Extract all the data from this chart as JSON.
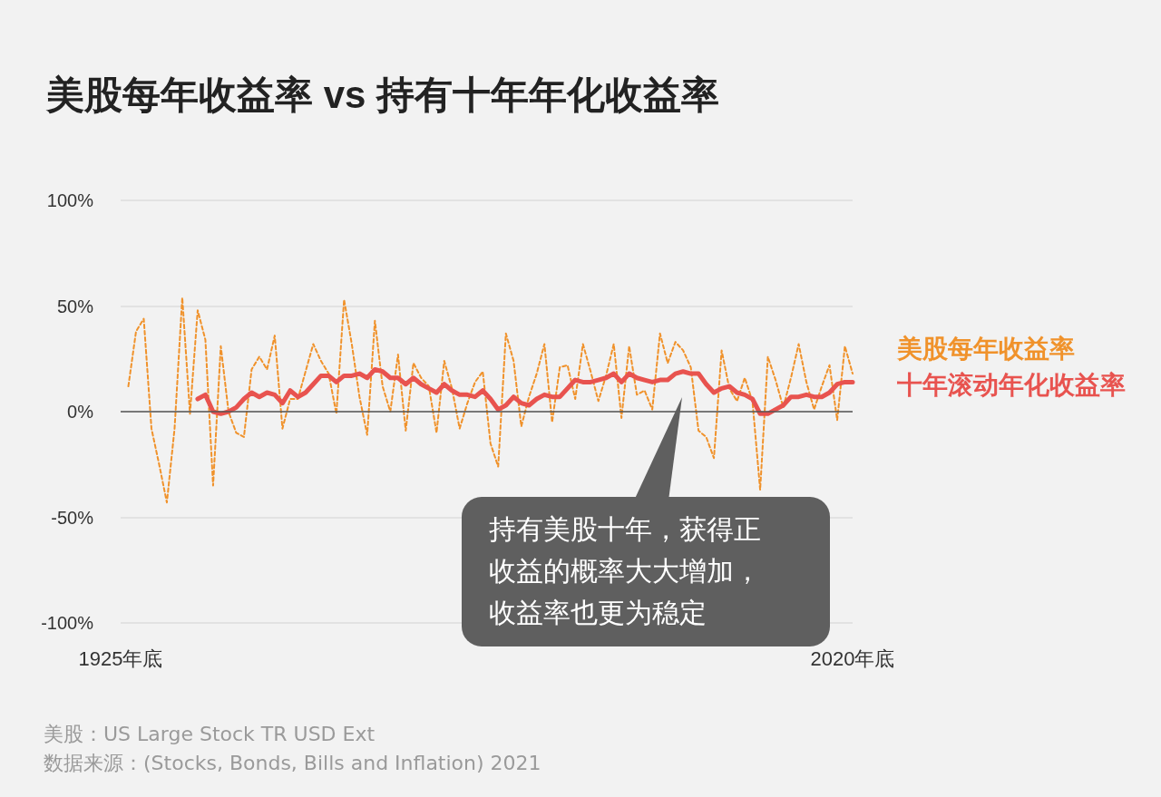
{
  "chart_data": {
    "type": "line",
    "title": "美股每年收益率 vs 持有十年年化收益率",
    "xlim": [
      1925,
      2020
    ],
    "xticks": [
      {
        "value": 1925,
        "label": "1925年底"
      },
      {
        "value": 2020,
        "label": "2020年底"
      }
    ],
    "ylim": [
      -100,
      100
    ],
    "yticks": [
      {
        "value": -100,
        "label": "-100%"
      },
      {
        "value": -50,
        "label": "-50%"
      },
      {
        "value": 0,
        "label": "0%"
      },
      {
        "value": 50,
        "label": "50%"
      },
      {
        "value": 100,
        "label": "100%"
      }
    ],
    "grid": "y",
    "legend": "right",
    "marker": "none",
    "ref_lines": [
      {
        "axis": "y",
        "value": 0,
        "color": "#555555"
      }
    ],
    "series": [
      {
        "name": "美股每年收益率",
        "color": "#f0922b",
        "line_style": "dashed",
        "x": [
          1926,
          1927,
          1928,
          1929,
          1930,
          1931,
          1932,
          1933,
          1934,
          1935,
          1936,
          1937,
          1938,
          1939,
          1940,
          1941,
          1942,
          1943,
          1944,
          1945,
          1946,
          1947,
          1948,
          1949,
          1950,
          1951,
          1952,
          1953,
          1954,
          1955,
          1956,
          1957,
          1958,
          1959,
          1960,
          1961,
          1962,
          1963,
          1964,
          1965,
          1966,
          1967,
          1968,
          1969,
          1970,
          1971,
          1972,
          1973,
          1974,
          1975,
          1976,
          1977,
          1978,
          1979,
          1980,
          1981,
          1982,
          1983,
          1984,
          1985,
          1986,
          1987,
          1988,
          1989,
          1990,
          1991,
          1992,
          1993,
          1994,
          1995,
          1996,
          1997,
          1998,
          1999,
          2000,
          2001,
          2002,
          2003,
          2004,
          2005,
          2006,
          2007,
          2008,
          2009,
          2010,
          2011,
          2012,
          2013,
          2014,
          2015,
          2016,
          2017,
          2018,
          2019,
          2020
        ],
        "values": [
          12,
          38,
          44,
          -8,
          -25,
          -43,
          -8,
          54,
          -1,
          48,
          34,
          -35,
          31,
          0,
          -10,
          -12,
          20,
          26,
          20,
          36,
          -8,
          6,
          6,
          19,
          32,
          24,
          18,
          -1,
          53,
          32,
          7,
          -11,
          43,
          12,
          0,
          27,
          -9,
          23,
          16,
          12,
          -10,
          24,
          11,
          -8,
          4,
          14,
          19,
          -15,
          -26,
          37,
          24,
          -7,
          7,
          18,
          32,
          -5,
          21,
          22,
          6,
          32,
          19,
          5,
          17,
          32,
          -3,
          31,
          8,
          10,
          1,
          37,
          23,
          33,
          29,
          21,
          -9,
          -12,
          -22,
          29,
          11,
          5,
          16,
          5,
          -37,
          26,
          15,
          2,
          16,
          32,
          14,
          1,
          12,
          22,
          -4,
          31,
          18
        ]
      },
      {
        "name": "十年滚动年化收益率",
        "color": "#e8534f",
        "line_style": "solid",
        "x": [
          1935,
          1936,
          1937,
          1938,
          1939,
          1940,
          1941,
          1942,
          1943,
          1944,
          1945,
          1946,
          1947,
          1948,
          1949,
          1950,
          1951,
          1952,
          1953,
          1954,
          1955,
          1956,
          1957,
          1958,
          1959,
          1960,
          1961,
          1962,
          1963,
          1964,
          1965,
          1966,
          1967,
          1968,
          1969,
          1970,
          1971,
          1972,
          1973,
          1974,
          1975,
          1976,
          1977,
          1978,
          1979,
          1980,
          1981,
          1982,
          1983,
          1984,
          1985,
          1986,
          1987,
          1988,
          1989,
          1990,
          1991,
          1992,
          1993,
          1994,
          1995,
          1996,
          1997,
          1998,
          1999,
          2000,
          2001,
          2002,
          2003,
          2004,
          2005,
          2006,
          2007,
          2008,
          2009,
          2010,
          2011,
          2012,
          2013,
          2014,
          2015,
          2016,
          2017,
          2018,
          2019,
          2020
        ],
        "values": [
          6,
          8,
          0,
          -1,
          0,
          2,
          6,
          9,
          7,
          9,
          8,
          4,
          10,
          7,
          9,
          13,
          17,
          17,
          14,
          17,
          17,
          18,
          16,
          20,
          19,
          16,
          16,
          13,
          16,
          13,
          11,
          9,
          13,
          10,
          8,
          8,
          7,
          10,
          6,
          1,
          3,
          7,
          4,
          3,
          6,
          8,
          7,
          7,
          11,
          15,
          14,
          14,
          15,
          16,
          18,
          14,
          18,
          16,
          15,
          14,
          15,
          15,
          18,
          19,
          18,
          18,
          13,
          9,
          11,
          12,
          9,
          8,
          6,
          -1,
          -1,
          1,
          3,
          7,
          7,
          8,
          7,
          7,
          9,
          13,
          14,
          14
        ]
      }
    ],
    "annotations": [
      "持有美股十年，获得正收益的概率大大增加，收益率也更为稳定",
      "美股：US Large Stock TR USD Ext",
      "数据来源：(Stocks, Bonds, Bills and Inflation) 2021"
    ]
  }
}
